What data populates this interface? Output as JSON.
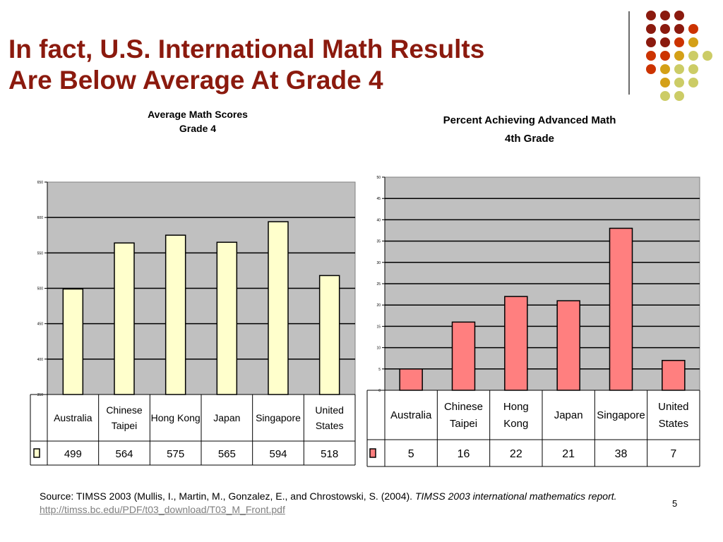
{
  "slide": {
    "title_line1": "In fact, U.S. International Math Results",
    "title_line2": "Are Below Average At Grade 4",
    "page_number": "5",
    "source_prefix": "Source: TIMSS 2003 (Mullis, I., Martin, M., Gonzalez, E., and Chrostowski, S. (2004). ",
    "source_italic": "TIMSS 2003 international mathematics report.",
    "source_link": "http://timss.bc.edu/PDF/t03_download/T03_M_Front.pdf"
  },
  "colors": {
    "title": "#8B1A0E",
    "plot_bg": "#C0C0C0",
    "bar_left": "#FFFFCC",
    "bar_right": "#FF7F7F",
    "dot_palette": [
      "#8B1A0E",
      "#CC3300",
      "#D4A017",
      "#CCCC66"
    ]
  },
  "chart_data": [
    {
      "type": "bar",
      "title_line1": "Average Math Scores",
      "title_line2": "Grade 4",
      "categories": [
        "Australia",
        "Chinese Taipei",
        "Hong Kong",
        "Japan",
        "Singapore",
        "United States"
      ],
      "category_lines": [
        [
          "Australia"
        ],
        [
          "Chinese",
          "Taipei"
        ],
        [
          "Hong Kong"
        ],
        [
          "Japan"
        ],
        [
          "Singapore"
        ],
        [
          "United",
          "States"
        ]
      ],
      "values": [
        499,
        564,
        575,
        565,
        594,
        518
      ],
      "ylim": [
        350,
        650
      ],
      "yticks": [
        350,
        400,
        450,
        500,
        550,
        600,
        650
      ],
      "grid": true,
      "legend": "data table"
    },
    {
      "type": "bar",
      "title_line1": "Percent Achieving Advanced Math",
      "title_line2": "4th Grade",
      "categories": [
        "Australia",
        "Chinese Taipei",
        "Hong Kong",
        "Japan",
        "Singapore",
        "United States"
      ],
      "category_lines": [
        [
          "Australia"
        ],
        [
          "Chinese",
          "Taipei"
        ],
        [
          "Hong",
          "Kong"
        ],
        [
          "Japan"
        ],
        [
          "Singapore"
        ],
        [
          "United",
          "States"
        ]
      ],
      "values": [
        5,
        16,
        22,
        21,
        38,
        7
      ],
      "ylim": [
        0,
        50
      ],
      "yticks": [
        0,
        5,
        10,
        15,
        20,
        25,
        30,
        35,
        40,
        45,
        50
      ],
      "grid": true,
      "legend": "data table"
    }
  ]
}
